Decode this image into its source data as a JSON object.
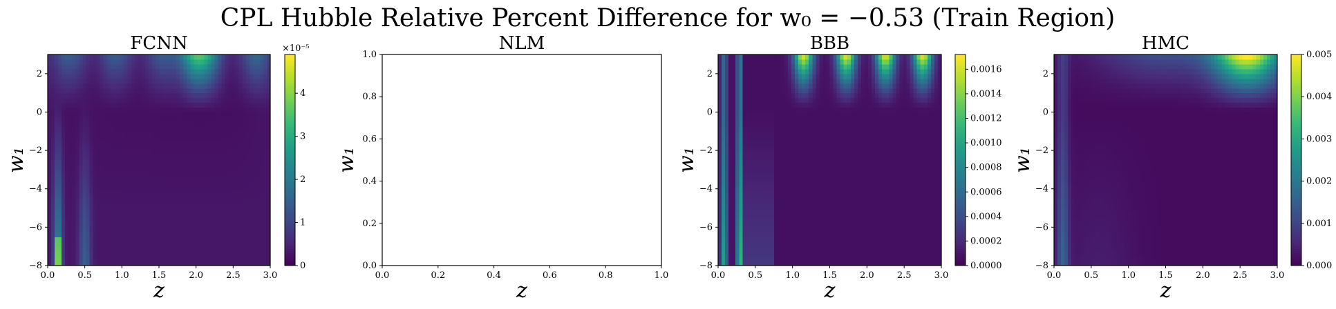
{
  "figure": {
    "title": "CPL Hubble Relative Percent Difference for w₀ = −0.53 (Train Region)"
  },
  "colormap": "viridis",
  "chart_data": [
    {
      "type": "heatmap",
      "title": "FCNN",
      "xlabel": "z",
      "ylabel": "w₁",
      "xlim": [
        0,
        3
      ],
      "ylim": [
        -8,
        3
      ],
      "xticks": [
        "0.0",
        "0.5",
        "1.0",
        "1.5",
        "2.0",
        "2.5",
        "3.0"
      ],
      "yticks": [
        "−8",
        "−6",
        "−4",
        "−2",
        "0",
        "2"
      ],
      "colorbar": {
        "min": 0,
        "max": 4.9e-05,
        "multiplier": "×10⁻⁵",
        "ticks": [
          "0",
          "1",
          "2",
          "3",
          "4"
        ],
        "tick_values": [
          0,
          1e-05,
          2e-05,
          3e-05,
          4e-05
        ]
      },
      "field": "fcnn",
      "empty": false
    },
    {
      "type": "line",
      "title": "NLM",
      "xlabel": "z",
      "ylabel": "w₁",
      "xlim": [
        0,
        1
      ],
      "ylim": [
        0,
        1
      ],
      "xticks": [
        "0.0",
        "0.2",
        "0.4",
        "0.6",
        "0.8",
        "1.0"
      ],
      "yticks": [
        "0.0",
        "0.2",
        "0.4",
        "0.6",
        "0.8",
        "1.0"
      ],
      "empty": true
    },
    {
      "type": "heatmap",
      "title": "BBB",
      "xlabel": "z",
      "ylabel": "w₁",
      "xlim": [
        0,
        3
      ],
      "ylim": [
        -8,
        3
      ],
      "xticks": [
        "0.0",
        "0.5",
        "1.0",
        "1.5",
        "2.0",
        "2.5",
        "3.0"
      ],
      "yticks": [
        "−8",
        "−6",
        "−4",
        "−2",
        "0",
        "2"
      ],
      "colorbar": {
        "min": 0,
        "max": 0.00172,
        "ticks": [
          "0.0000",
          "0.0002",
          "0.0004",
          "0.0006",
          "0.0008",
          "0.0010",
          "0.0012",
          "0.0014",
          "0.0016"
        ],
        "tick_values": [
          0,
          0.0002,
          0.0004,
          0.0006,
          0.0008,
          0.001,
          0.0012,
          0.0014,
          0.0016
        ]
      },
      "field": "bbb",
      "empty": false
    },
    {
      "type": "heatmap",
      "title": "HMC",
      "xlabel": "z",
      "ylabel": "w₁",
      "xlim": [
        0,
        3
      ],
      "ylim": [
        -8,
        3
      ],
      "xticks": [
        "0.0",
        "0.5",
        "1.0",
        "1.5",
        "2.0",
        "2.5",
        "3.0"
      ],
      "yticks": [
        "−8",
        "−6",
        "−4",
        "−2",
        "0",
        "2"
      ],
      "colorbar": {
        "min": 0,
        "max": 0.005,
        "ticks": [
          "0.000",
          "0.001",
          "0.002",
          "0.003",
          "0.004",
          "0.005"
        ],
        "tick_values": [
          0,
          0.001,
          0.002,
          0.003,
          0.004,
          0.005
        ]
      },
      "field": "hmc",
      "empty": false
    }
  ]
}
